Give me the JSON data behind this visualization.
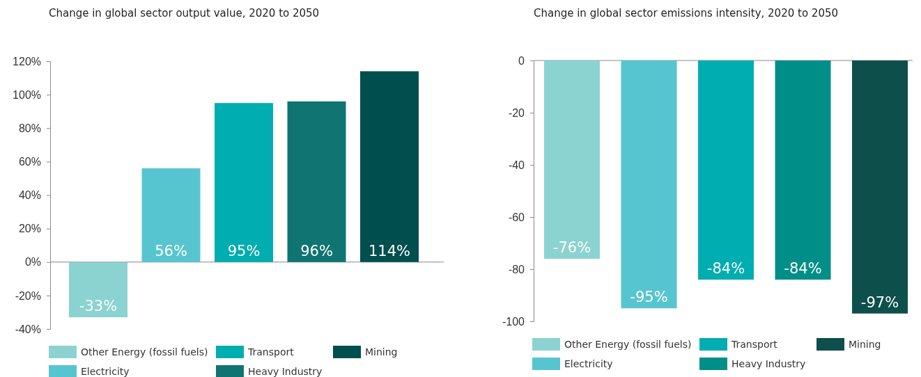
{
  "chart_data": [
    {
      "type": "bar",
      "title": "Change in global sector output value, 2020 to 2050",
      "categories": [
        null,
        null,
        null,
        null,
        null
      ],
      "series": [
        {
          "name": "Other Energy (fossil fuels)",
          "color": "#8ad3d0",
          "values": [
            -33,
            null,
            null,
            null,
            null
          ],
          "value_labels": [
            "-33%",
            null,
            null,
            null,
            null
          ]
        },
        {
          "name": "Electricity",
          "color": "#57c5d0",
          "values": [
            null,
            56,
            null,
            null,
            null
          ],
          "value_labels": [
            null,
            "56%",
            null,
            null,
            null
          ]
        },
        {
          "name": "Transport",
          "color": "#00adb0",
          "values": [
            null,
            null,
            95,
            null,
            null
          ],
          "value_labels": [
            null,
            null,
            "95%",
            null,
            null
          ]
        },
        {
          "name": "Heavy Industry",
          "color": "#0f7472",
          "values": [
            null,
            null,
            null,
            96,
            null
          ],
          "value_labels": [
            null,
            null,
            null,
            "96%",
            null
          ]
        },
        {
          "name": "Mining",
          "color": "#004f4f",
          "values": [
            null,
            null,
            null,
            null,
            114
          ],
          "value_labels": [
            null,
            null,
            null,
            null,
            "114%"
          ]
        }
      ],
      "ylim": [
        -40,
        120
      ],
      "yticks": [
        {
          "value": -40,
          "label": "-40%"
        },
        {
          "value": -20,
          "label": "-20%"
        },
        {
          "value": 0,
          "label": "0%"
        },
        {
          "value": 20,
          "label": "20%"
        },
        {
          "value": 40,
          "label": "40%"
        },
        {
          "value": 60,
          "label": "60%"
        },
        {
          "value": 80,
          "label": "80%"
        },
        {
          "value": 100,
          "label": "100%"
        },
        {
          "value": 120,
          "label": "120%"
        }
      ],
      "legend": "bottom"
    },
    {
      "type": "bar",
      "title": "Change in global sector emissions intensity, 2020 to 2050",
      "categories": [
        null,
        null,
        null,
        null,
        null
      ],
      "series": [
        {
          "name": "Other Energy (fossil fuels)",
          "color": "#8ad3d0",
          "values": [
            -76,
            null,
            null,
            null,
            null
          ],
          "value_labels": [
            "-76%",
            null,
            null,
            null,
            null
          ]
        },
        {
          "name": "Electricity",
          "color": "#57c5d0",
          "values": [
            null,
            -95,
            null,
            null,
            null
          ],
          "value_labels": [
            null,
            "-95%",
            null,
            null,
            null
          ]
        },
        {
          "name": "Transport",
          "color": "#00adb0",
          "values": [
            null,
            null,
            -84,
            null,
            null
          ],
          "value_labels": [
            null,
            null,
            "-84%",
            null,
            null
          ]
        },
        {
          "name": "Heavy Industry",
          "color": "#008f88",
          "values": [
            null,
            null,
            null,
            -84,
            null
          ],
          "value_labels": [
            null,
            null,
            null,
            "-84%",
            null
          ]
        },
        {
          "name": "Mining",
          "color": "#0d4f4b",
          "values": [
            null,
            null,
            null,
            null,
            -97
          ],
          "value_labels": [
            null,
            null,
            null,
            null,
            "-97%"
          ]
        }
      ],
      "ylim": [
        -100,
        0
      ],
      "yticks": [
        -100,
        -80,
        -60,
        -40,
        -20,
        0
      ],
      "legend": "bottom"
    }
  ]
}
